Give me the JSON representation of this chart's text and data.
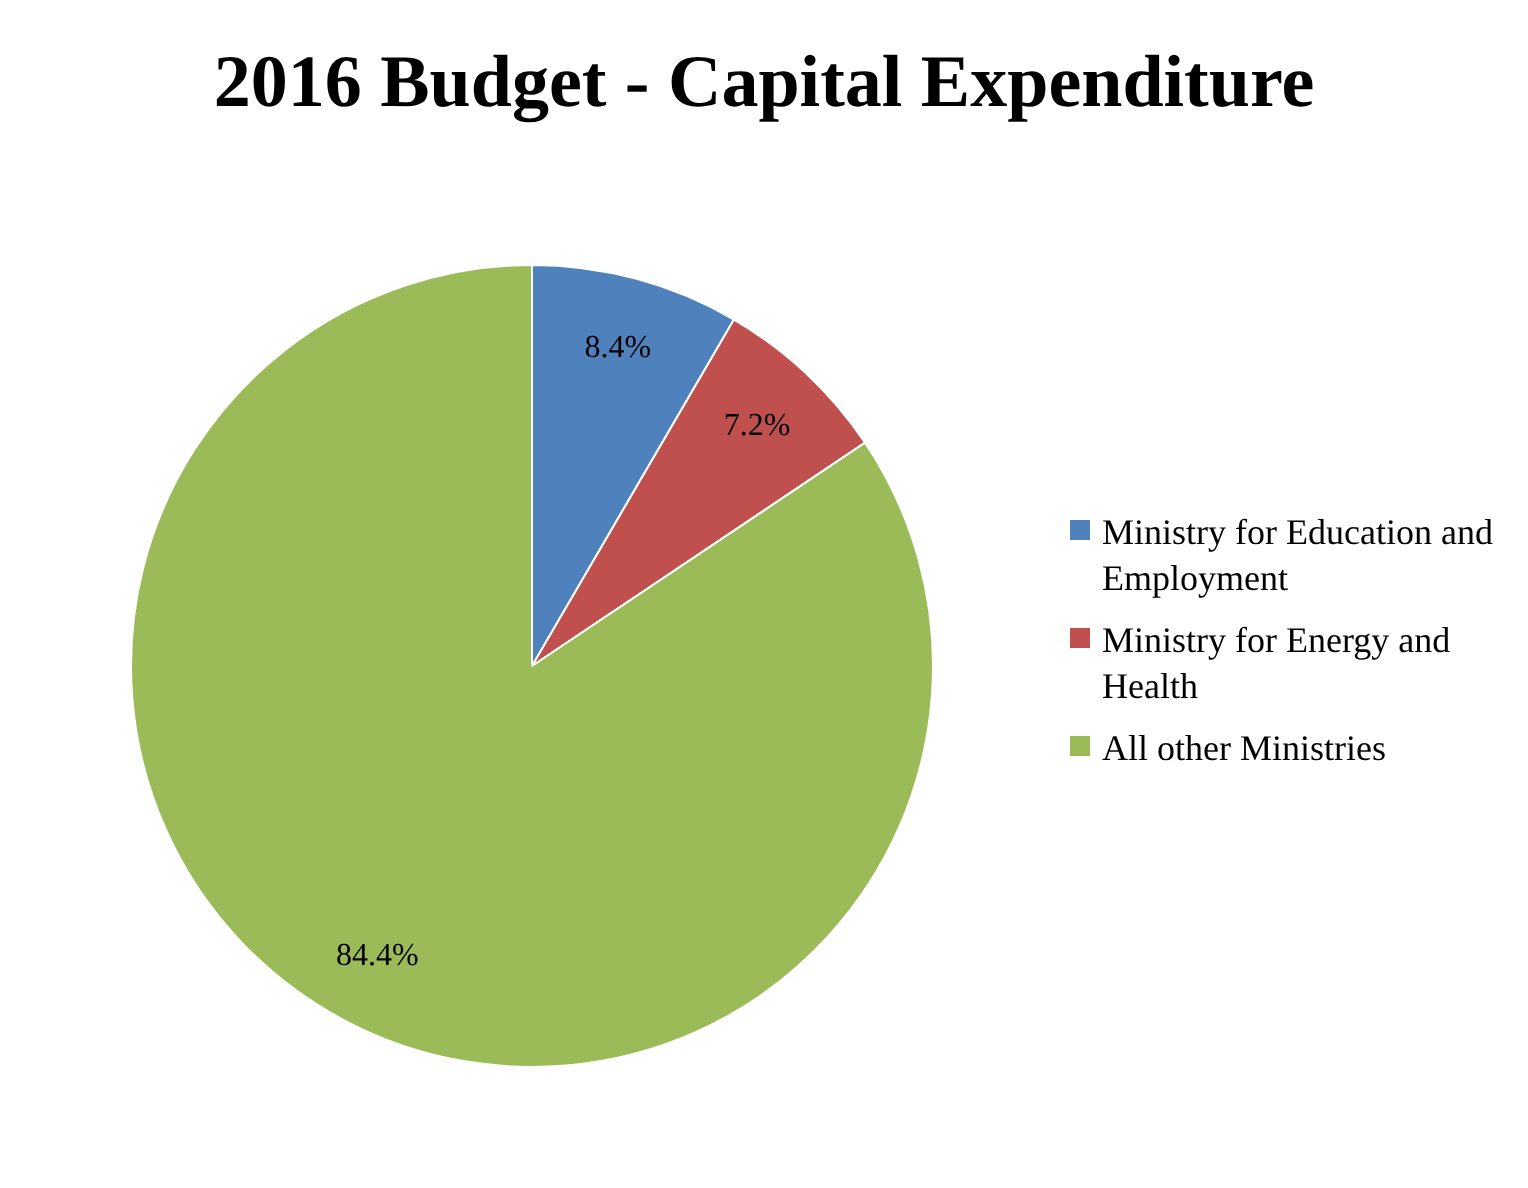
{
  "chart_data": {
    "type": "pie",
    "title": "2016 Budget - Capital Expenditure",
    "categories": [
      "Ministry for Education and Employment",
      "Ministry for Energy and Health",
      "All other Ministries"
    ],
    "values": [
      8.4,
      7.2,
      84.4
    ],
    "colors": [
      "#4f81bd",
      "#c0504d",
      "#9bbb59"
    ],
    "value_labels": [
      "8.4%",
      "7.2%",
      "84.4%"
    ],
    "legend": "right"
  }
}
